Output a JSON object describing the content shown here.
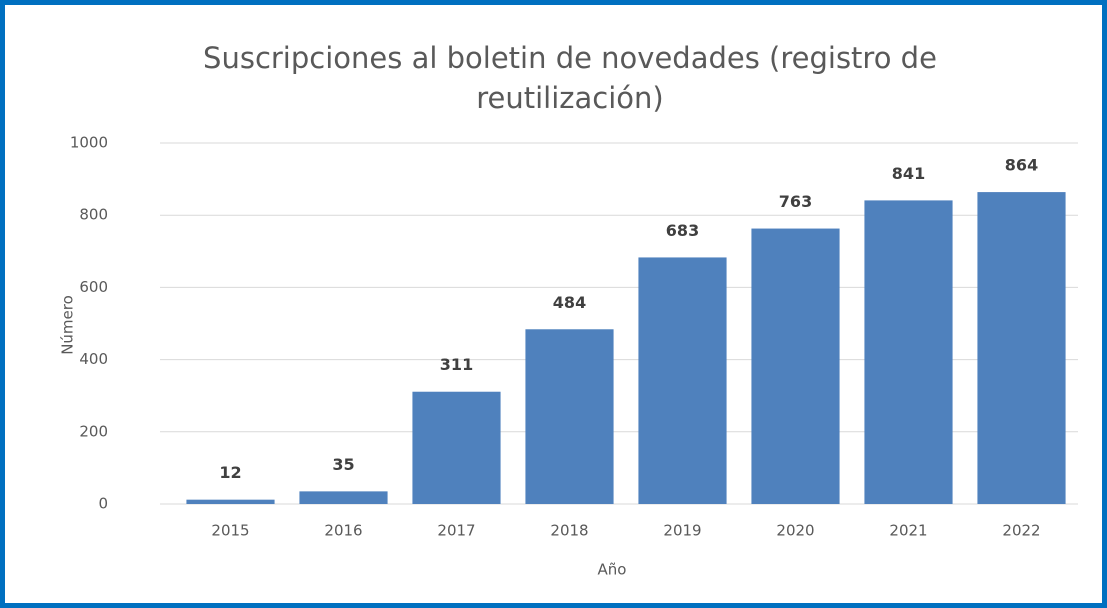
{
  "chart_data": {
    "type": "bar",
    "title": "Suscripciones al boletin de novedades (registro de reutilización)",
    "x_label": "Año",
    "y_label": "Número",
    "categories": [
      "2015",
      "2016",
      "2017",
      "2018",
      "2019",
      "2020",
      "2021",
      "2022"
    ],
    "values": [
      12,
      35,
      311,
      484,
      683,
      763,
      841,
      864
    ],
    "color": "#4f81bd",
    "ylim": [
      0,
      1000
    ],
    "yticks": [
      0,
      200,
      400,
      600,
      800,
      1000
    ],
    "grid": true
  }
}
